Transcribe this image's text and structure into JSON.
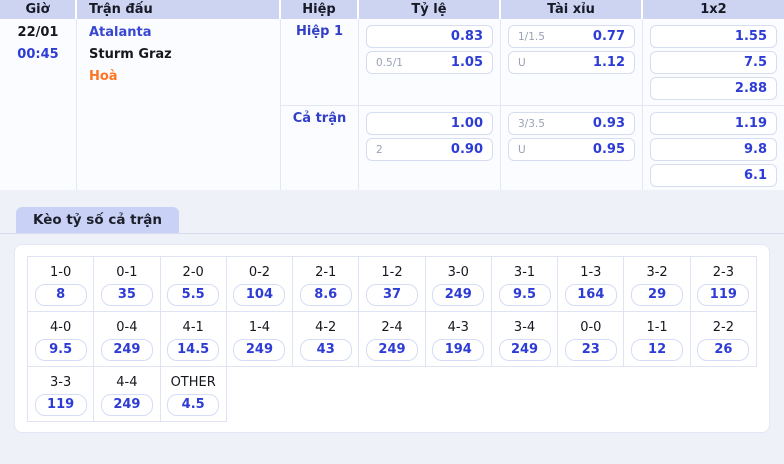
{
  "colors": {
    "accent_blue": "#2e3cd6",
    "draw_orange": "#fd7522",
    "header_bg": "#ccd4f1",
    "tab_bg": "#c9d2f6"
  },
  "table": {
    "headers": {
      "time": "Giờ",
      "match": "Trận đấu",
      "half": "Hiệp",
      "rate": "Tỷ lệ",
      "over_under": "Tài xỉu",
      "one_x_two": "1x2"
    },
    "match": {
      "date": "22/01",
      "time": "00:45",
      "home": "Atalanta",
      "away": "Sturm Graz",
      "draw": "Hoà"
    },
    "sections": [
      {
        "label": "Hiệp 1",
        "rate": [
          {
            "hdp": "",
            "odds": "0.83"
          },
          {
            "hdp": "0.5/1",
            "odds": "1.05"
          }
        ],
        "over_under": [
          {
            "hdp": "1/1.5",
            "odds": "0.77"
          },
          {
            "hdp": "U",
            "odds": "1.12"
          }
        ],
        "one_x_two": [
          "1.55",
          "7.5",
          "2.88"
        ]
      },
      {
        "label": "Cả trận",
        "rate": [
          {
            "hdp": "",
            "odds": "1.00"
          },
          {
            "hdp": "2",
            "odds": "0.90"
          }
        ],
        "over_under": [
          {
            "hdp": "3/3.5",
            "odds": "0.93"
          },
          {
            "hdp": "U",
            "odds": "0.95"
          }
        ],
        "one_x_two": [
          "1.19",
          "9.8",
          "6.1"
        ]
      }
    ]
  },
  "correct_score": {
    "tab_label": "Kèo tỷ số cả trận",
    "rows": [
      [
        {
          "score": "1-0",
          "odds": "8"
        },
        {
          "score": "0-1",
          "odds": "35"
        },
        {
          "score": "2-0",
          "odds": "5.5"
        },
        {
          "score": "0-2",
          "odds": "104"
        },
        {
          "score": "2-1",
          "odds": "8.6"
        },
        {
          "score": "1-2",
          "odds": "37"
        },
        {
          "score": "3-0",
          "odds": "249"
        },
        {
          "score": "3-1",
          "odds": "9.5"
        },
        {
          "score": "1-3",
          "odds": "164"
        },
        {
          "score": "3-2",
          "odds": "29"
        },
        {
          "score": "2-3",
          "odds": "119"
        }
      ],
      [
        {
          "score": "4-0",
          "odds": "9.5"
        },
        {
          "score": "0-4",
          "odds": "249"
        },
        {
          "score": "4-1",
          "odds": "14.5"
        },
        {
          "score": "1-4",
          "odds": "249"
        },
        {
          "score": "4-2",
          "odds": "43"
        },
        {
          "score": "2-4",
          "odds": "249"
        },
        {
          "score": "4-3",
          "odds": "194"
        },
        {
          "score": "3-4",
          "odds": "249"
        },
        {
          "score": "0-0",
          "odds": "23"
        },
        {
          "score": "1-1",
          "odds": "12"
        },
        {
          "score": "2-2",
          "odds": "26"
        }
      ],
      [
        {
          "score": "3-3",
          "odds": "119"
        },
        {
          "score": "4-4",
          "odds": "249"
        },
        {
          "score": "OTHER",
          "odds": "4.5"
        }
      ]
    ]
  }
}
